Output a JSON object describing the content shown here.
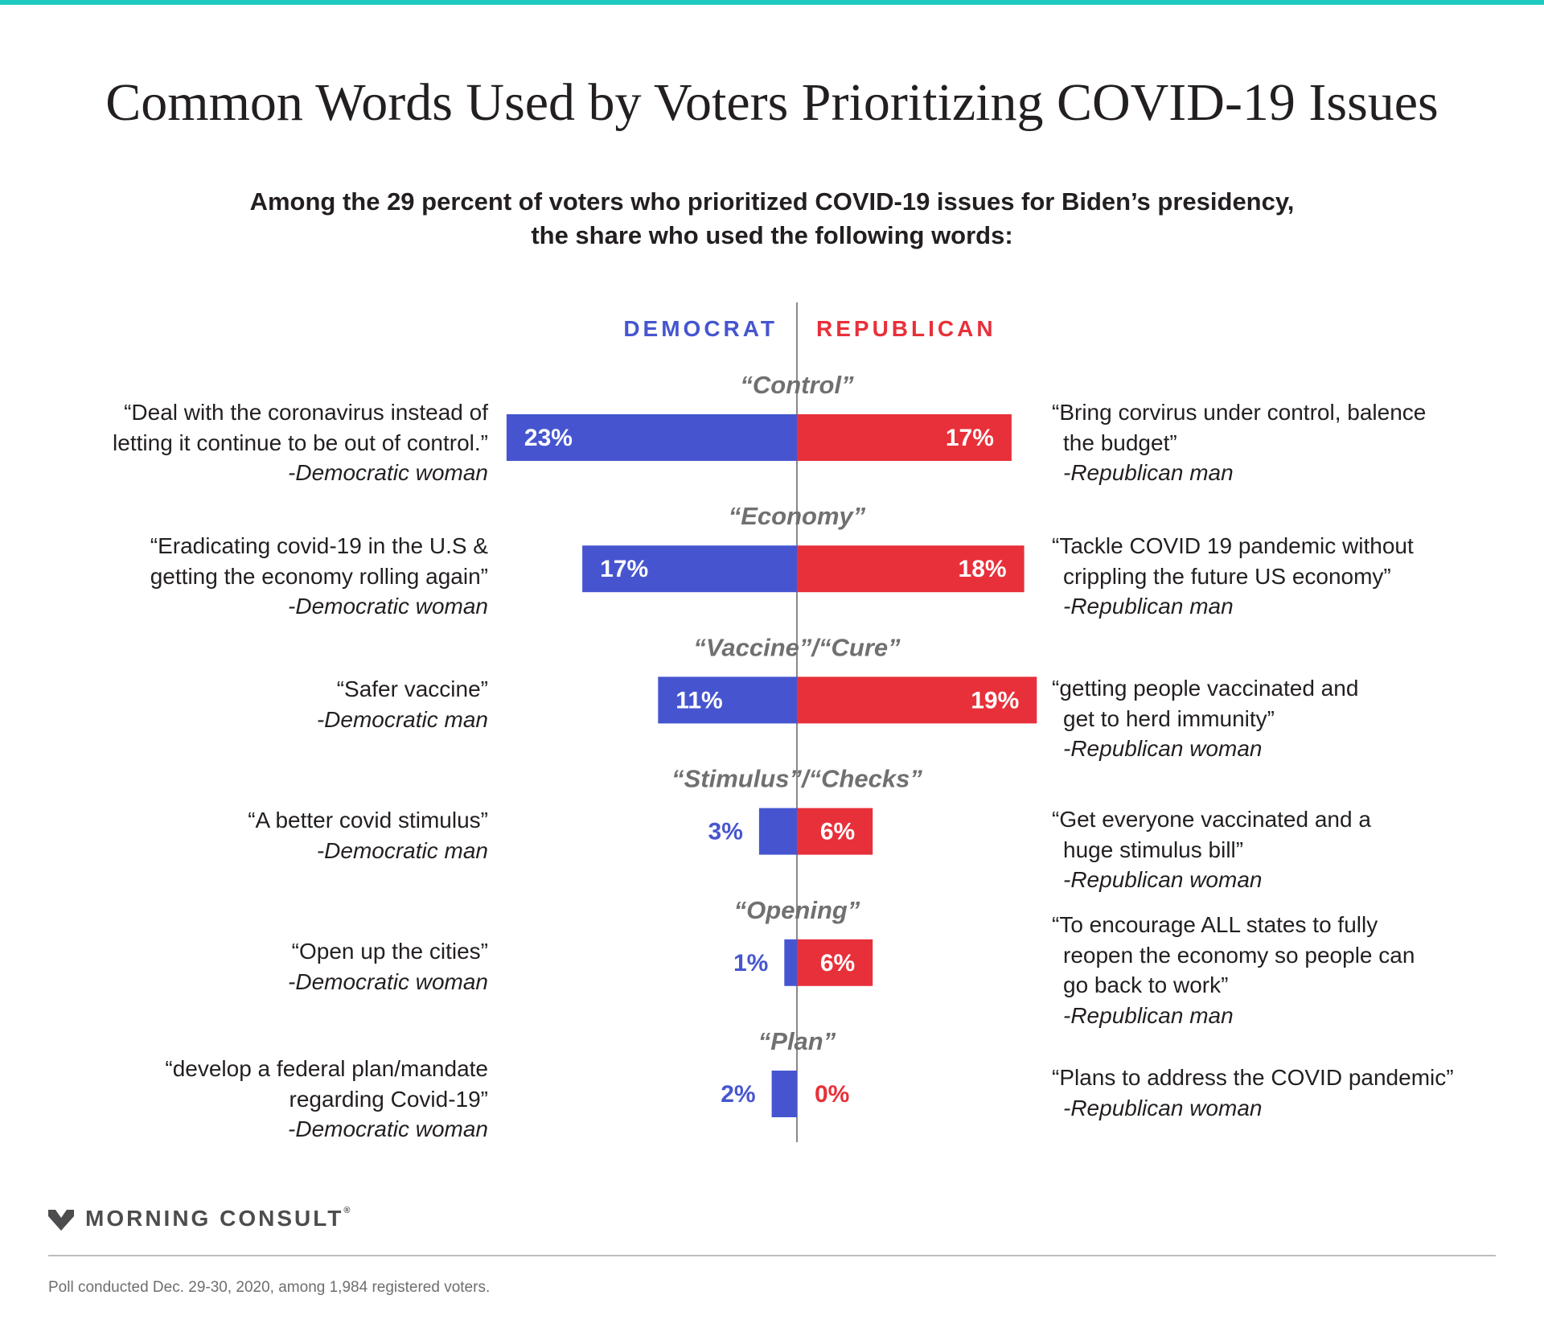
{
  "colors": {
    "accent_bar": "#1ec9c0",
    "democrat": "#4655cf",
    "republican": "#e8303a",
    "category_label": "#707070",
    "axis": "#888888"
  },
  "title": "Common Words Used by Voters Prioritizing COVID-19 Issues",
  "subtitle": {
    "line1": "Among the 29 percent of voters who prioritized COVID-19 issues for Biden’s presidency,",
    "line2": "the share who used the following words:"
  },
  "chart_data": {
    "type": "bar",
    "orientation": "diverging-horizontal",
    "series": [
      {
        "name": "DEMOCRAT",
        "values": [
          23,
          17,
          11,
          3,
          1,
          2
        ]
      },
      {
        "name": "REPUBLICAN",
        "values": [
          17,
          18,
          19,
          6,
          6,
          0
        ]
      }
    ],
    "categories": [
      "“Control”",
      "“Economy”",
      "“Vaccine”/“Cure”",
      "“Stimulus”/“Checks”",
      "“Opening”",
      "“Plan”"
    ],
    "data_labels": {
      "democrat": [
        "23%",
        "17%",
        "11%",
        "3%",
        "1%",
        "2%"
      ],
      "republican": [
        "17%",
        "18%",
        "19%",
        "6%",
        "6%",
        "0%"
      ]
    },
    "units": "%",
    "legend_position": "top-center"
  },
  "quotes": [
    {
      "dem": {
        "lines": [
          "“Deal with the coronavirus instead of",
          "letting it continue to be out of control.”"
        ],
        "attr": "-Democratic woman"
      },
      "rep": {
        "lines": [
          "“Bring corvirus under control, balence",
          "the budget”"
        ],
        "attr": "-Republican man"
      }
    },
    {
      "dem": {
        "lines": [
          "“Eradicating covid-19 in the U.S &",
          "getting the economy rolling again”"
        ],
        "attr": "-Democratic woman"
      },
      "rep": {
        "lines": [
          "“Tackle COVID 19 pandemic without",
          "crippling the future US economy”"
        ],
        "attr": "-Republican man"
      }
    },
    {
      "dem": {
        "lines": [
          "“Safer vaccine”"
        ],
        "attr": "-Democratic man"
      },
      "rep": {
        "lines": [
          "“getting people vaccinated and",
          "get to herd immunity”"
        ],
        "attr": "-Republican woman"
      }
    },
    {
      "dem": {
        "lines": [
          "“A better covid stimulus”"
        ],
        "attr": "-Democratic man"
      },
      "rep": {
        "lines": [
          "“Get everyone vaccinated and a",
          "huge stimulus bill”"
        ],
        "attr": "-Republican woman"
      }
    },
    {
      "dem": {
        "lines": [
          "“Open up the cities”"
        ],
        "attr": "-Democratic woman"
      },
      "rep": {
        "lines": [
          "“To encourage ALL states to fully",
          "reopen the economy so people can",
          "go back to work”"
        ],
        "attr": "-Republican man"
      }
    },
    {
      "dem": {
        "lines": [
          "“develop a federal plan/mandate",
          "regarding Covid-19”"
        ],
        "attr": "-Democratic woman"
      },
      "rep": {
        "lines": [
          "“Plans to address the COVID pandemic”"
        ],
        "attr": "-Republican woman"
      }
    }
  ],
  "logo": {
    "text": "MORNING CONSULT",
    "mark": "®"
  },
  "footnote": "Poll conducted Dec. 29-30, 2020, among 1,984 registered voters."
}
